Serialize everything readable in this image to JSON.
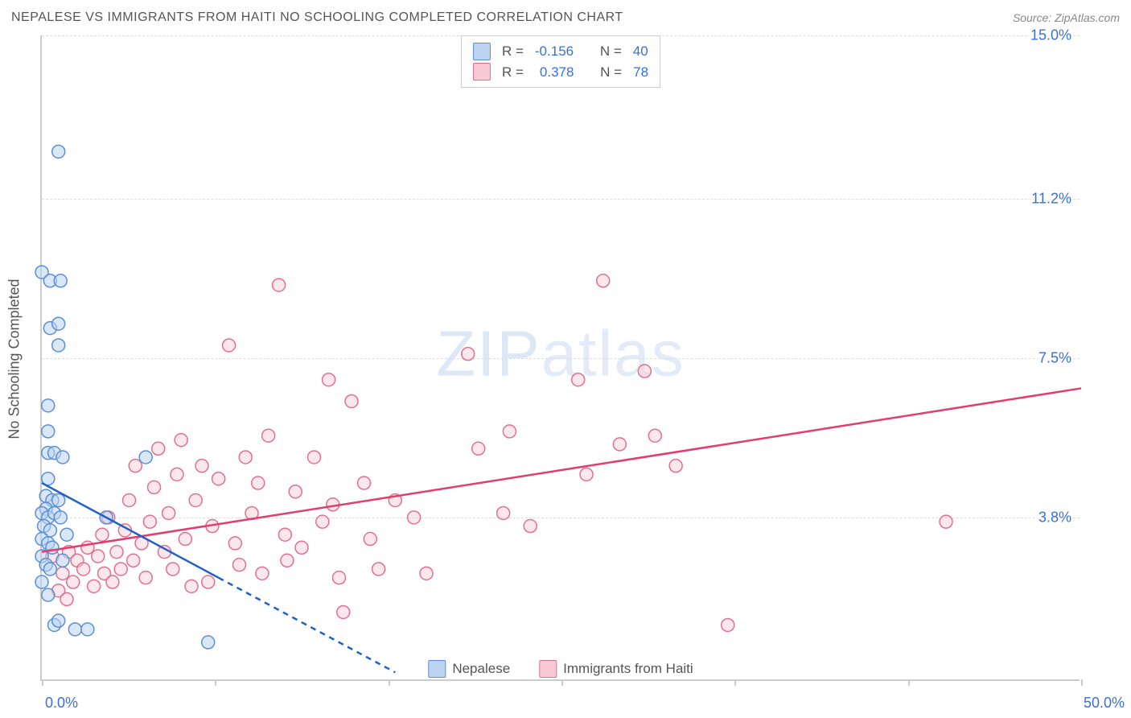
{
  "header": {
    "title": "NEPALESE VS IMMIGRANTS FROM HAITI NO SCHOOLING COMPLETED CORRELATION CHART",
    "source": "Source: ZipAtlas.com"
  },
  "watermark": {
    "part1": "ZIP",
    "part2": "atlas"
  },
  "y_axis": {
    "title": "No Schooling Completed"
  },
  "chart": {
    "type": "scatter-with-regression",
    "background_color": "#ffffff",
    "grid_color": "#dddddd",
    "axis_color": "#cccccc",
    "label_color": "#3a6fd8",
    "xlim": [
      0.0,
      50.0
    ],
    "ylim": [
      0.0,
      15.0
    ],
    "x_ticks": [
      0.0,
      8.33,
      16.67,
      25.0,
      33.33,
      41.67,
      50.0
    ],
    "y_gridlines": [
      3.8,
      7.5,
      11.2,
      15.0
    ],
    "y_labels": [
      "3.8%",
      "7.5%",
      "11.2%",
      "15.0%"
    ],
    "x_min_label": "0.0%",
    "x_max_label": "50.0%",
    "marker_radius": 8,
    "marker_stroke_width": 1.5,
    "line_width": 2.5
  },
  "series": {
    "blue": {
      "label": "Nepalese",
      "fill": "#bcd4f0",
      "stroke": "#5a8fd6",
      "line_color": "#1f61c9",
      "fill_opacity": 0.55,
      "R": "-0.156",
      "N": "40",
      "regression": {
        "x1": 0.0,
        "y1": 4.6,
        "x2": 8.5,
        "y2": 2.4,
        "extrap_x2": 17.0,
        "extrap_y2": 0.2
      },
      "points": [
        [
          0.0,
          9.5
        ],
        [
          0.8,
          12.3
        ],
        [
          0.4,
          9.3
        ],
        [
          0.9,
          9.3
        ],
        [
          0.4,
          8.2
        ],
        [
          0.8,
          8.3
        ],
        [
          0.8,
          7.8
        ],
        [
          0.3,
          6.4
        ],
        [
          0.3,
          5.8
        ],
        [
          0.3,
          5.3
        ],
        [
          0.6,
          5.3
        ],
        [
          1.0,
          5.2
        ],
        [
          0.3,
          4.7
        ],
        [
          0.2,
          4.3
        ],
        [
          0.5,
          4.2
        ],
        [
          0.8,
          4.2
        ],
        [
          0.2,
          4.0
        ],
        [
          0.0,
          3.9
        ],
        [
          0.3,
          3.8
        ],
        [
          0.6,
          3.9
        ],
        [
          0.9,
          3.8
        ],
        [
          0.1,
          3.6
        ],
        [
          0.4,
          3.5
        ],
        [
          0.0,
          3.3
        ],
        [
          0.3,
          3.2
        ],
        [
          0.5,
          3.1
        ],
        [
          0.0,
          2.9
        ],
        [
          0.2,
          2.7
        ],
        [
          0.4,
          2.6
        ],
        [
          0.0,
          2.3
        ],
        [
          0.3,
          2.0
        ],
        [
          3.1,
          3.8
        ],
        [
          5.0,
          5.2
        ],
        [
          1.6,
          1.2
        ],
        [
          2.2,
          1.2
        ],
        [
          8.0,
          0.9
        ],
        [
          0.6,
          1.3
        ],
        [
          0.8,
          1.4
        ],
        [
          1.2,
          3.4
        ],
        [
          1.0,
          2.8
        ]
      ]
    },
    "pink": {
      "label": "Immigrants from Haiti",
      "fill": "#f8c9d4",
      "stroke": "#e36f8e",
      "line_color": "#e23d6d",
      "fill_opacity": 0.45,
      "R": "0.378",
      "N": "78",
      "regression": {
        "x1": 0.0,
        "y1": 3.0,
        "x2": 50.0,
        "y2": 6.8
      },
      "points": [
        [
          0.5,
          2.9
        ],
        [
          1.0,
          2.5
        ],
        [
          1.3,
          3.0
        ],
        [
          1.5,
          2.3
        ],
        [
          1.7,
          2.8
        ],
        [
          2.0,
          2.6
        ],
        [
          2.2,
          3.1
        ],
        [
          2.5,
          2.2
        ],
        [
          2.7,
          2.9
        ],
        [
          2.9,
          3.4
        ],
        [
          3.0,
          2.5
        ],
        [
          3.2,
          3.8
        ],
        [
          3.4,
          2.3
        ],
        [
          3.6,
          3.0
        ],
        [
          3.8,
          2.6
        ],
        [
          4.0,
          3.5
        ],
        [
          4.2,
          4.2
        ],
        [
          4.4,
          2.8
        ],
        [
          4.5,
          5.0
        ],
        [
          4.8,
          3.2
        ],
        [
          5.0,
          2.4
        ],
        [
          5.2,
          3.7
        ],
        [
          5.4,
          4.5
        ],
        [
          5.6,
          5.4
        ],
        [
          5.9,
          3.0
        ],
        [
          6.1,
          3.9
        ],
        [
          6.3,
          2.6
        ],
        [
          6.5,
          4.8
        ],
        [
          6.7,
          5.6
        ],
        [
          6.9,
          3.3
        ],
        [
          7.2,
          2.2
        ],
        [
          7.4,
          4.2
        ],
        [
          7.7,
          5.0
        ],
        [
          8.0,
          2.3
        ],
        [
          8.2,
          3.6
        ],
        [
          8.5,
          4.7
        ],
        [
          9.0,
          7.8
        ],
        [
          9.3,
          3.2
        ],
        [
          9.5,
          2.7
        ],
        [
          9.8,
          5.2
        ],
        [
          10.1,
          3.9
        ],
        [
          10.4,
          4.6
        ],
        [
          10.6,
          2.5
        ],
        [
          10.9,
          5.7
        ],
        [
          11.4,
          9.2
        ],
        [
          11.7,
          3.4
        ],
        [
          11.8,
          2.8
        ],
        [
          12.2,
          4.4
        ],
        [
          12.5,
          3.1
        ],
        [
          13.8,
          7.0
        ],
        [
          13.1,
          5.2
        ],
        [
          13.5,
          3.7
        ],
        [
          14.0,
          4.1
        ],
        [
          14.3,
          2.4
        ],
        [
          14.5,
          1.6
        ],
        [
          14.9,
          6.5
        ],
        [
          15.5,
          4.6
        ],
        [
          15.8,
          3.3
        ],
        [
          16.2,
          2.6
        ],
        [
          17.0,
          4.2
        ],
        [
          17.9,
          3.8
        ],
        [
          18.5,
          2.5
        ],
        [
          20.5,
          7.6
        ],
        [
          21.0,
          5.4
        ],
        [
          22.2,
          3.9
        ],
        [
          22.5,
          5.8
        ],
        [
          23.5,
          3.6
        ],
        [
          25.8,
          7.0
        ],
        [
          26.2,
          4.8
        ],
        [
          27.0,
          9.3
        ],
        [
          27.8,
          5.5
        ],
        [
          29.0,
          7.2
        ],
        [
          29.5,
          5.7
        ],
        [
          30.5,
          5.0
        ],
        [
          33.0,
          1.3
        ],
        [
          43.5,
          3.7
        ],
        [
          0.8,
          2.1
        ],
        [
          1.2,
          1.9
        ]
      ]
    }
  },
  "r_legend": {
    "R_label": "R =",
    "N_label": "N ="
  }
}
